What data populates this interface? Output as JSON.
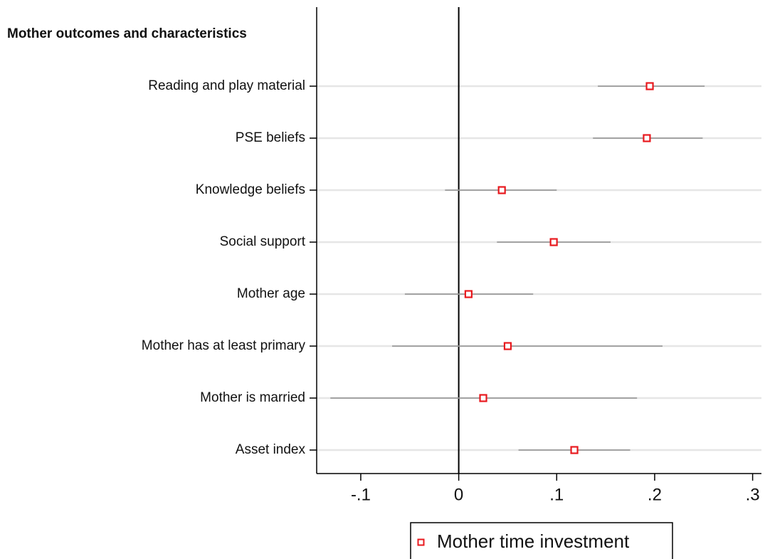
{
  "chart_data": {
    "type": "coefplot",
    "group_label": "Mother outcomes and characteristics",
    "categories": [
      "Reading and play material",
      "PSE beliefs",
      "Knowledge beliefs",
      "Social support",
      "Mother age",
      "Mother has at least primary",
      "Mother is married",
      "Asset index"
    ],
    "series": [
      {
        "name": "Mother time investment",
        "color": "#e8191e",
        "ci_color": "#9a9a9a",
        "values": [
          0.195,
          0.192,
          0.044,
          0.097,
          0.01,
          0.05,
          0.025,
          0.118
        ],
        "ci_low": [
          0.142,
          0.137,
          -0.014,
          0.039,
          -0.055,
          -0.068,
          -0.131,
          0.061
        ],
        "ci_high": [
          0.251,
          0.249,
          0.1,
          0.155,
          0.076,
          0.208,
          0.182,
          0.175
        ]
      }
    ],
    "xlim": [
      -0.145,
      0.309
    ],
    "xticks": [
      {
        "value": -0.1,
        "label": "-.1"
      },
      0,
      {
        "value": 0.1,
        "label": ".1"
      },
      {
        "value": 0.2,
        "label": ".2"
      },
      {
        "value": 0.3,
        "label": ".3"
      }
    ],
    "xline": 0,
    "grid": true,
    "legend": "bottom"
  }
}
